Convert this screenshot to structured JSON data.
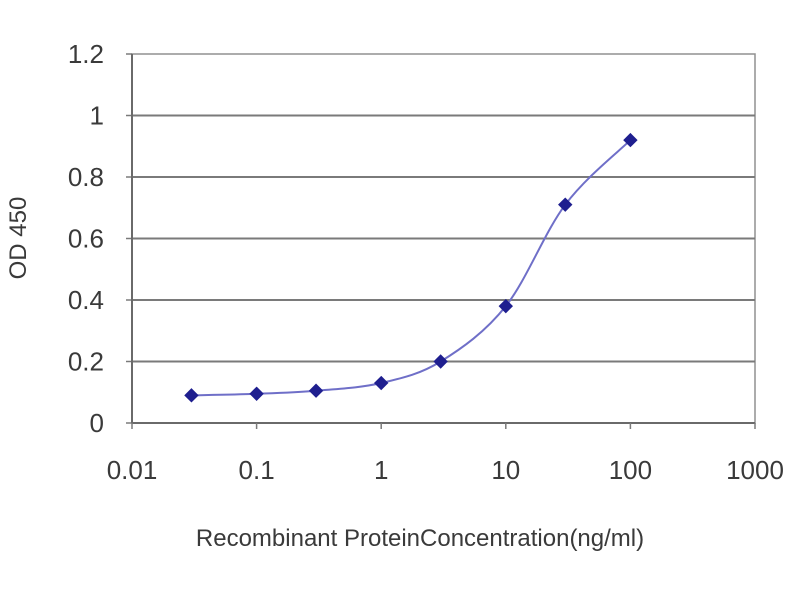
{
  "chart_data": {
    "type": "line",
    "xscale": "log",
    "xlabel": "Recombinant ProteinConcentration(ng/ml)",
    "ylabel": "OD 450",
    "x_ticks": [
      "0.01",
      "0.1",
      "1",
      "10",
      "100",
      "1000"
    ],
    "y_ticks": [
      "0",
      "0.2",
      "0.4",
      "0.6",
      "0.8",
      "1",
      "1.2"
    ],
    "xlim": [
      0.01,
      1000
    ],
    "ylim": [
      0,
      1.2
    ],
    "grid": "horizontal",
    "series": [
      {
        "color": "#1f1f8f",
        "marker": "diamond",
        "points": [
          {
            "x": 0.03,
            "y": 0.09
          },
          {
            "x": 0.1,
            "y": 0.095
          },
          {
            "x": 0.3,
            "y": 0.105
          },
          {
            "x": 1,
            "y": 0.13
          },
          {
            "x": 3,
            "y": 0.2
          },
          {
            "x": 10,
            "y": 0.38
          },
          {
            "x": 30,
            "y": 0.71
          },
          {
            "x": 100,
            "y": 0.92
          }
        ]
      }
    ]
  }
}
